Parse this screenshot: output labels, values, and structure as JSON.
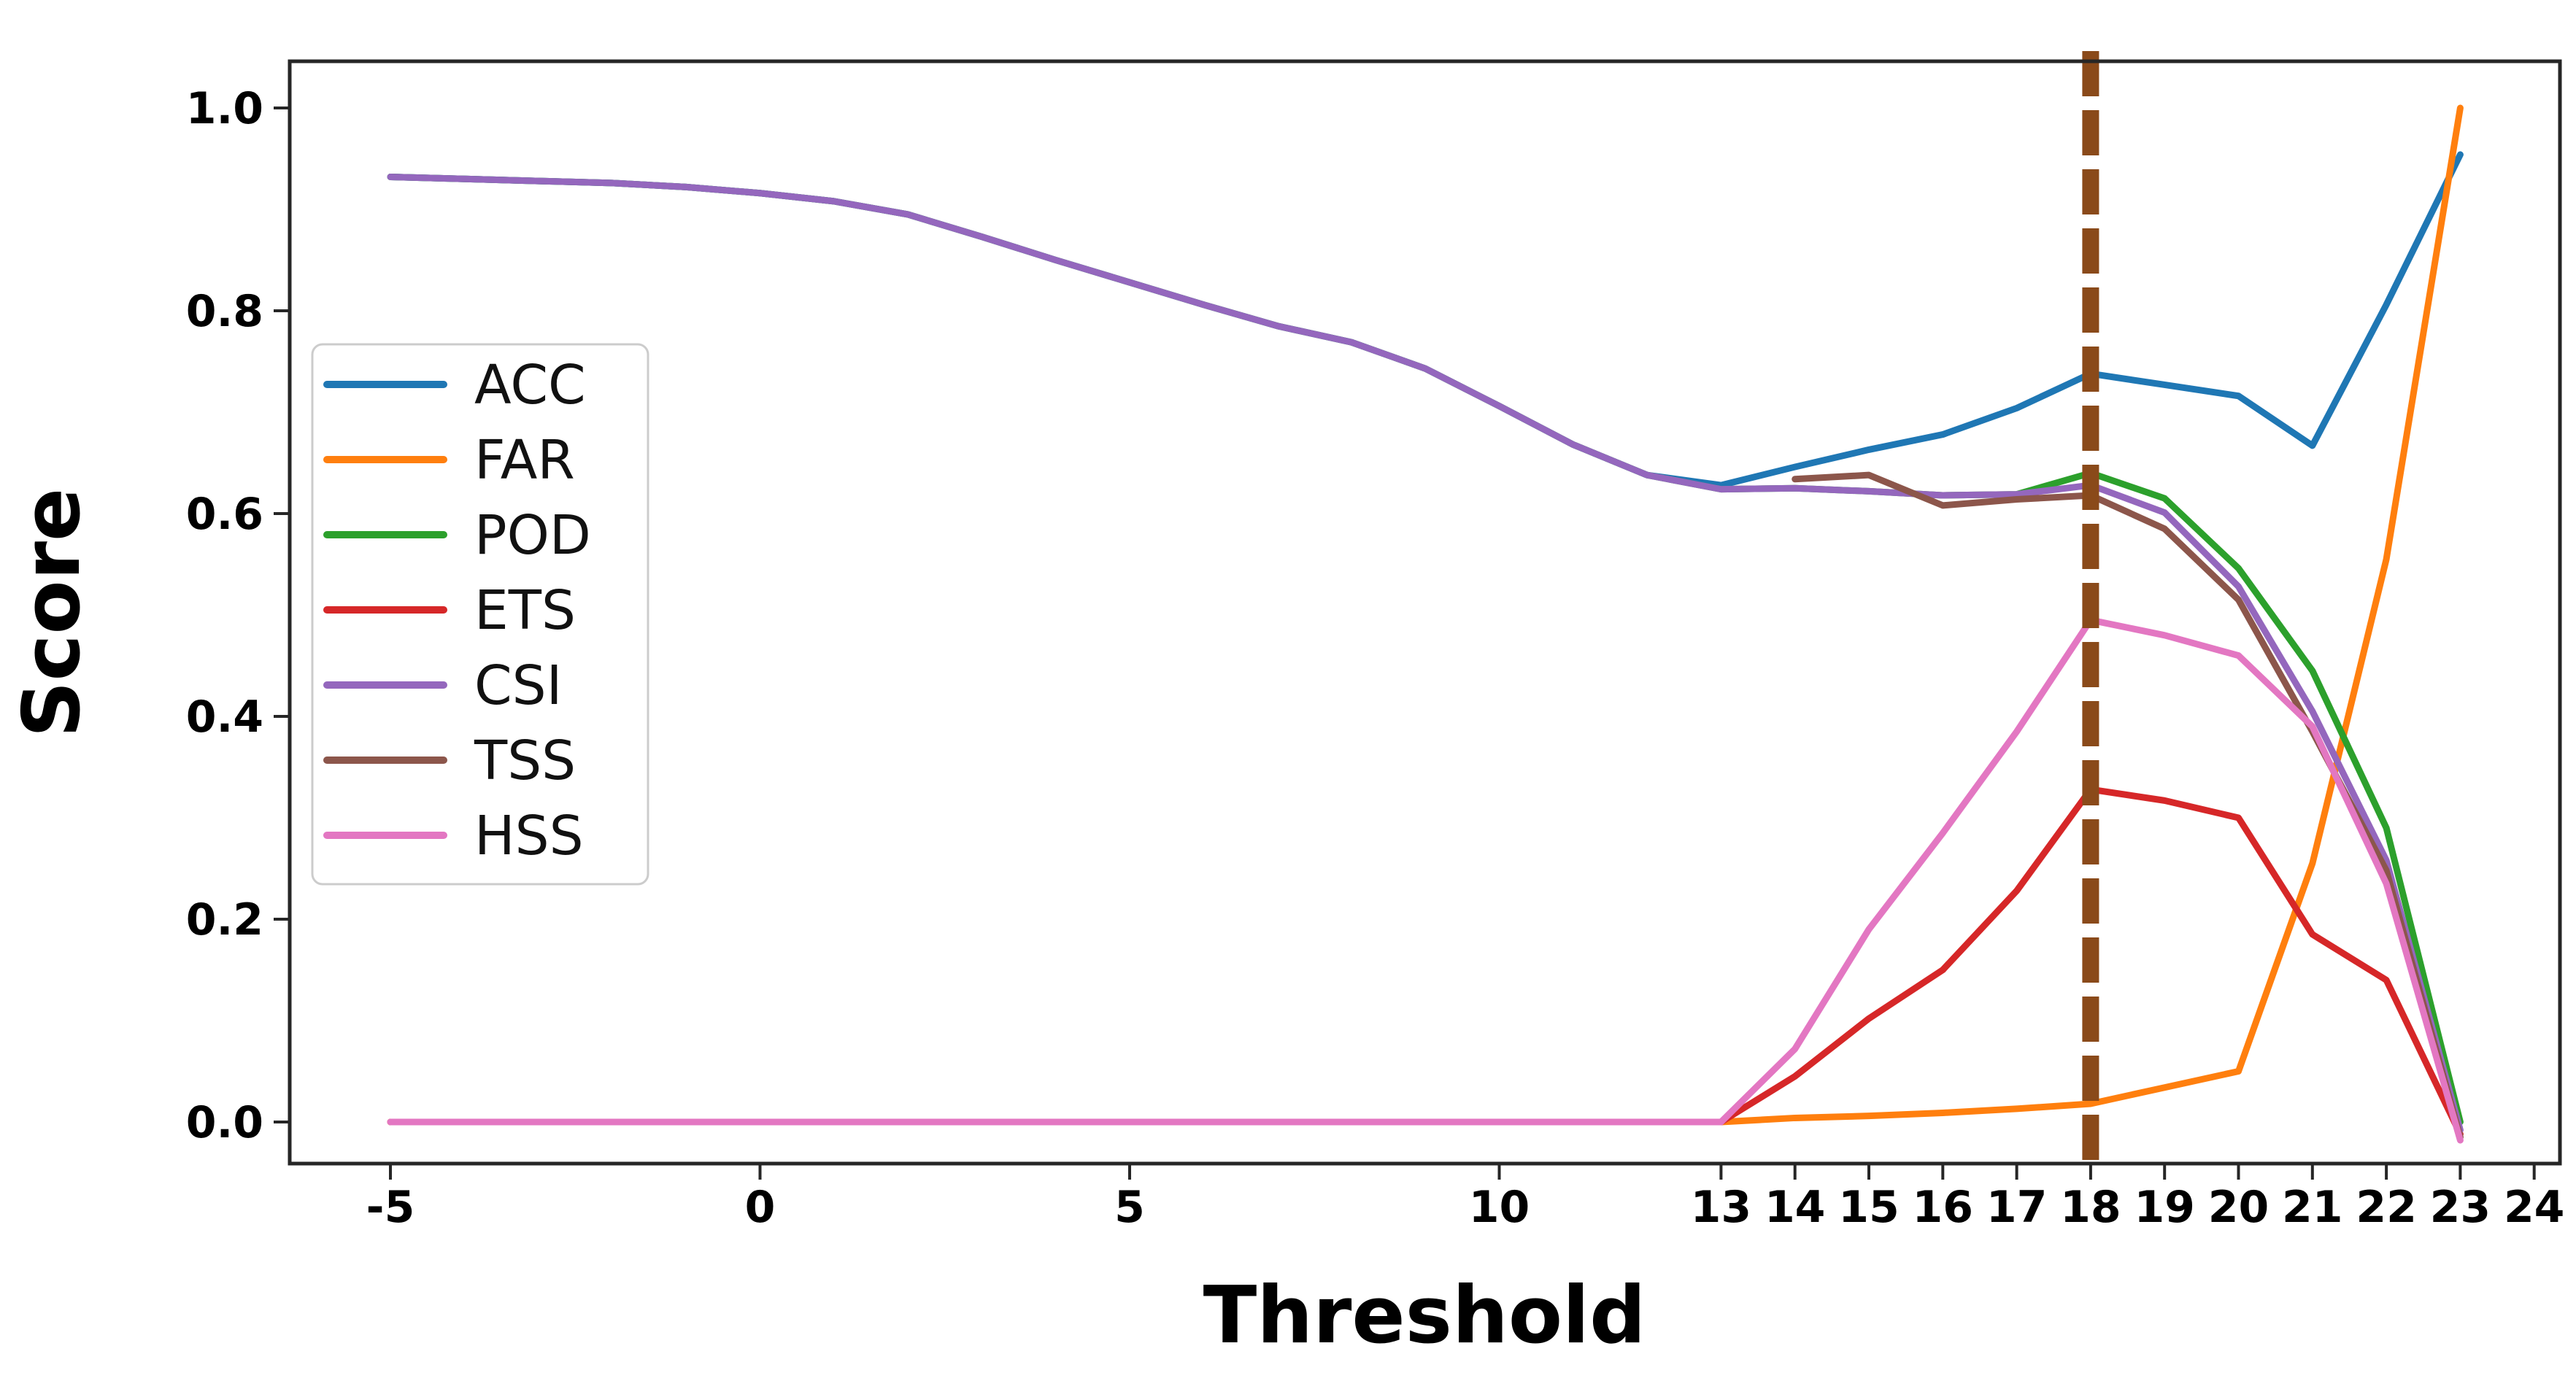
{
  "chart_data": {
    "type": "line",
    "title": "",
    "xlabel": "Threshold",
    "ylabel": "Score",
    "xlim": [
      -6.4,
      24.4
    ],
    "ylim": [
      -0.04,
      1.05
    ],
    "grid": false,
    "background": "#ffffff",
    "axis_color": "#262626",
    "tick_label_color": "#000000",
    "xticks": {
      "values": [
        -5,
        0,
        5,
        10,
        13,
        14,
        15,
        16,
        17,
        18,
        19,
        20,
        21,
        22,
        23,
        24
      ],
      "labels": [
        "-5",
        "0",
        "5",
        "10",
        "13",
        "14",
        "15",
        "16",
        "17",
        "18",
        "19",
        "20",
        "21",
        "22",
        "23",
        "24"
      ]
    },
    "yticks": {
      "values": [
        0.0,
        0.2,
        0.4,
        0.6,
        0.8,
        1.0
      ],
      "labels": [
        "0.0",
        "0.2",
        "0.4",
        "0.6",
        "0.8",
        "1.0"
      ]
    },
    "vline": {
      "x": 18,
      "color": "#8a4a1a",
      "style": "dashed"
    },
    "legend": {
      "position": "upper-left-inside",
      "entries": [
        "ACC",
        "FAR",
        "POD",
        "ETS",
        "CSI",
        "TSS",
        "HSS"
      ]
    },
    "series": [
      {
        "name": "ACC",
        "color": "#1f77b4",
        "x": [
          -5,
          -4,
          -3,
          -2,
          -1,
          0,
          1,
          2,
          3,
          4,
          5,
          6,
          7,
          8,
          9,
          10,
          11,
          12,
          13,
          14,
          15,
          16,
          17,
          18,
          19,
          20,
          21,
          22,
          23
        ],
        "y": [
          0.932,
          0.93,
          0.928,
          0.926,
          0.922,
          0.916,
          0.908,
          0.895,
          0.873,
          0.85,
          0.828,
          0.806,
          0.785,
          0.769,
          0.743,
          0.706,
          0.668,
          0.638,
          0.628,
          0.646,
          0.663,
          0.678,
          0.704,
          0.738,
          0.727,
          0.716,
          0.667,
          0.806,
          0.954
        ]
      },
      {
        "name": "FAR",
        "color": "#ff7f0e",
        "x": [
          -5,
          -4,
          -3,
          -2,
          -1,
          0,
          1,
          2,
          3,
          4,
          5,
          6,
          7,
          8,
          9,
          10,
          11,
          12,
          13,
          14,
          15,
          16,
          17,
          18,
          19,
          20,
          21,
          22,
          23
        ],
        "y": [
          0,
          0,
          0,
          0,
          0,
          0,
          0,
          0,
          0,
          0,
          0,
          0,
          0,
          0,
          0,
          0,
          0,
          0,
          0,
          0.004,
          0.006,
          0.009,
          0.013,
          0.018,
          0.034,
          0.05,
          0.255,
          0.555,
          1.0
        ]
      },
      {
        "name": "POD",
        "color": "#2ca02c",
        "x": [
          -5,
          -4,
          -3,
          -2,
          -1,
          0,
          1,
          2,
          3,
          4,
          5,
          6,
          7,
          8,
          9,
          10,
          11,
          12,
          13,
          14,
          15,
          16,
          17,
          18,
          19,
          20,
          21,
          22,
          23
        ],
        "y": [
          0.932,
          0.93,
          0.928,
          0.926,
          0.922,
          0.916,
          0.908,
          0.895,
          0.873,
          0.85,
          0.828,
          0.806,
          0.785,
          0.769,
          0.743,
          0.706,
          0.668,
          0.638,
          0.624,
          0.625,
          0.622,
          0.618,
          0.619,
          0.64,
          0.615,
          0.546,
          0.445,
          0.29,
          0.0
        ]
      },
      {
        "name": "ETS",
        "color": "#d62728",
        "x": [
          -5,
          -4,
          -3,
          -2,
          -1,
          0,
          1,
          2,
          3,
          4,
          5,
          6,
          7,
          8,
          9,
          10,
          11,
          12,
          13,
          14,
          15,
          16,
          17,
          18,
          19,
          20,
          21,
          22,
          23
        ],
        "y": [
          0,
          0,
          0,
          0,
          0,
          0,
          0,
          0,
          0,
          0,
          0,
          0,
          0,
          0,
          0,
          0,
          0,
          0,
          0,
          0.045,
          0.102,
          0.15,
          0.228,
          0.328,
          0.317,
          0.3,
          0.185,
          0.14,
          -0.012
        ]
      },
      {
        "name": "CSI",
        "color": "#9467bd",
        "x": [
          -5,
          -4,
          -3,
          -2,
          -1,
          0,
          1,
          2,
          3,
          4,
          5,
          6,
          7,
          8,
          9,
          10,
          11,
          12,
          13,
          14,
          15,
          16,
          17,
          18,
          19,
          20,
          21,
          22,
          23
        ],
        "y": [
          0.932,
          0.93,
          0.928,
          0.926,
          0.922,
          0.916,
          0.908,
          0.895,
          0.873,
          0.85,
          0.828,
          0.806,
          0.785,
          0.769,
          0.743,
          0.706,
          0.668,
          0.638,
          0.624,
          0.625,
          0.622,
          0.618,
          0.619,
          0.628,
          0.601,
          0.528,
          0.405,
          0.258,
          -0.008
        ]
      },
      {
        "name": "TSS",
        "color": "#8c564b",
        "x": [
          14,
          15,
          16,
          17,
          18,
          19,
          20,
          21,
          22,
          23
        ],
        "y": [
          0.634,
          0.638,
          0.608,
          0.614,
          0.618,
          0.585,
          0.515,
          0.385,
          0.248,
          -0.015
        ]
      },
      {
        "name": "HSS",
        "color": "#e377c2",
        "x": [
          -5,
          -4,
          -3,
          -2,
          -1,
          0,
          1,
          2,
          3,
          4,
          5,
          6,
          7,
          8,
          9,
          10,
          11,
          12,
          13,
          14,
          15,
          16,
          17,
          18,
          19,
          20,
          21,
          22,
          23
        ],
        "y": [
          0,
          0,
          0,
          0,
          0,
          0,
          0,
          0,
          0,
          0,
          0,
          0,
          0,
          0,
          0,
          0,
          0,
          0,
          0,
          0.072,
          0.19,
          0.285,
          0.385,
          0.495,
          0.48,
          0.46,
          0.39,
          0.235,
          -0.018
        ]
      }
    ]
  }
}
